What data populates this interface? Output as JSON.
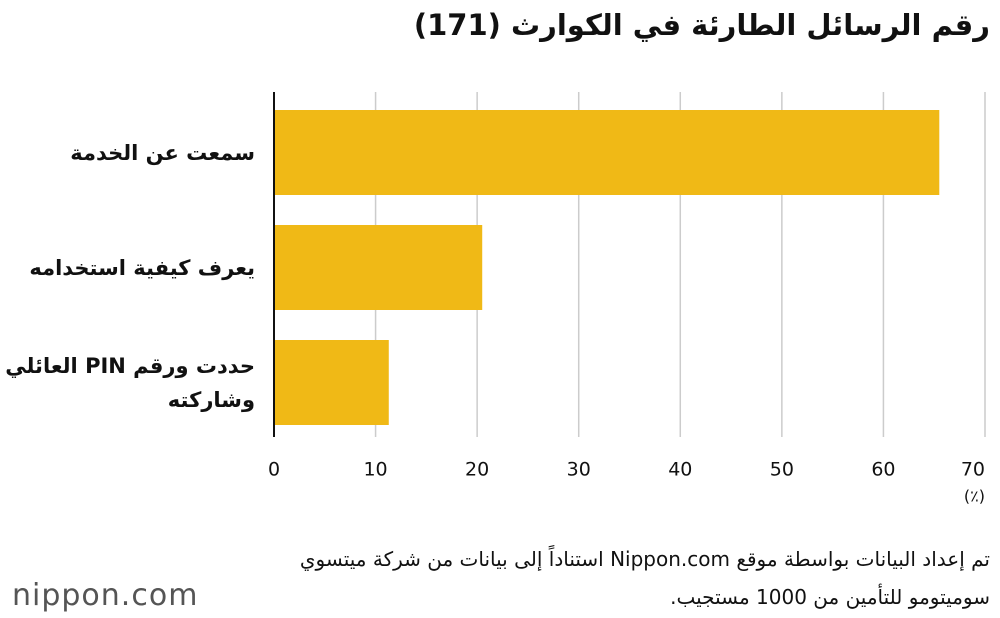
{
  "chart_data": {
    "type": "bar",
    "orientation": "horizontal",
    "title": "رقم الرسائل الطارئة في الكوارث (171)",
    "categories": [
      "سمعت عن الخدمة",
      "يعرف كيفية استخدامه",
      "حددت ورقم PIN العائلي وشاركته"
    ],
    "values": [
      65.5,
      20.5,
      11.3
    ],
    "color": "#f0b916",
    "xlim": [
      0,
      70
    ],
    "xticks": [
      0,
      10,
      20,
      30,
      40,
      50,
      60,
      70
    ],
    "grid": true,
    "x_unit": "(٪)",
    "source": "تم إعداد البيانات بواسطة موقع Nippon.com استناداً إلى بيانات من شركة ميتسوي سوميتومو للتأمين من 1000 مستجيب.",
    "logo": "nippon.com"
  }
}
